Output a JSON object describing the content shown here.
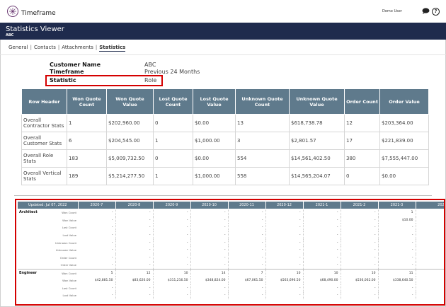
{
  "app": {
    "title": "Timeframe",
    "user": "Demo User"
  },
  "header": {
    "title": "Statistics Viewer",
    "subtitle": "ABC"
  },
  "tabs": [
    {
      "label": "General"
    },
    {
      "label": "Contacts"
    },
    {
      "label": "Attachments"
    },
    {
      "label": "Statistics",
      "active": true
    }
  ],
  "info": [
    {
      "label": "Customer Name",
      "value": "ABC"
    },
    {
      "label": "Timeframe",
      "value": "Previous 24 Months"
    },
    {
      "label": "Statistic",
      "value": "Role"
    }
  ],
  "stats_table": {
    "headers": [
      "Row Header",
      "Won Quote Count",
      "Won Quote Value",
      "Lost Quote Count",
      "Lost Quote Value",
      "Unknown Quote Count",
      "Unknown Quote Value",
      "Order Count",
      "Order Value"
    ],
    "rows": [
      [
        "Overall Contractor Stats",
        "1",
        "$202,960.00",
        "0",
        "$0.00",
        "13",
        "$618,738.78",
        "12",
        "$203,364.00"
      ],
      [
        "Overall Customer Stats",
        "6",
        "$204,545.00",
        "1",
        "$1,000.00",
        "3",
        "$2,801.57",
        "17",
        "$221,839.00"
      ],
      [
        "Overall Role Stats",
        "183",
        "$5,009,732.50",
        "0",
        "$0.00",
        "554",
        "$14,561,402.50",
        "380",
        "$7,555,447.00"
      ],
      [
        "Overall Vertical Stats",
        "189",
        "$5,214,277.50",
        "1",
        "$1,000.00",
        "558",
        "$14,565,204.07",
        "0",
        "$0.00"
      ]
    ]
  },
  "grid": {
    "updated": "Updated: Jul 07, 2022",
    "periods": [
      "2020-7",
      "2020-8",
      "2020-9",
      "2020-10",
      "2020-11",
      "2020-12",
      "2021-1",
      "2021-2",
      "2021-3",
      "2021-4"
    ],
    "groups": [
      {
        "name": "Architect",
        "rows": [
          {
            "metric": "Won Count",
            "values": [
              "-",
              "-",
              "-",
              "-",
              "-",
              "-",
              "-",
              "-",
              "1",
              ""
            ]
          },
          {
            "metric": "Won Value",
            "values": [
              "-",
              "-",
              "-",
              "-",
              "-",
              "-",
              "-",
              "-",
              "$10.00",
              ""
            ]
          },
          {
            "metric": "Lost Count",
            "values": [
              "-",
              "-",
              "-",
              "-",
              "-",
              "-",
              "-",
              "-",
              "-",
              ""
            ]
          },
          {
            "metric": "Lost Value",
            "values": [
              "-",
              "-",
              "-",
              "-",
              "-",
              "-",
              "-",
              "-",
              "-",
              ""
            ]
          },
          {
            "metric": "Unknown Count",
            "values": [
              "-",
              "-",
              "-",
              "-",
              "-",
              "-",
              "-",
              "-",
              "-",
              ""
            ]
          },
          {
            "metric": "Unknown Value",
            "values": [
              "-",
              "-",
              "-",
              "-",
              "-",
              "-",
              "-",
              "-",
              "-",
              ""
            ]
          },
          {
            "metric": "Order Count",
            "values": [
              "-",
              "-",
              "-",
              "-",
              "-",
              "-",
              "-",
              "-",
              "-",
              ""
            ]
          },
          {
            "metric": "Order Value",
            "values": [
              "-",
              "-",
              "-",
              "-",
              "-",
              "-",
              "-",
              "-",
              "-",
              ""
            ]
          }
        ]
      },
      {
        "name": "Engineer",
        "rows": [
          {
            "metric": "Won Count",
            "values": [
              "5",
              "12",
              "10",
              "14",
              "7",
              "10",
              "10",
              "10",
              "11",
              ""
            ]
          },
          {
            "metric": "Won Value",
            "values": [
              "$42,881.50",
              "$83,620.00",
              "$311,216.50",
              "$348,824.00",
              "$67,061.50",
              "$563,696.50",
              "$68,490.00",
              "$536,062.00",
              "$338,640.50",
              "$325,78"
            ]
          },
          {
            "metric": "Lost Count",
            "values": [
              "-",
              "-",
              "-",
              "-",
              "-",
              "-",
              "-",
              "-",
              "-",
              ""
            ]
          },
          {
            "metric": "Lost Value",
            "values": [
              "-",
              "-",
              "-",
              "-",
              "-",
              "-",
              "-",
              "-",
              "-",
              ""
            ]
          }
        ]
      }
    ]
  }
}
